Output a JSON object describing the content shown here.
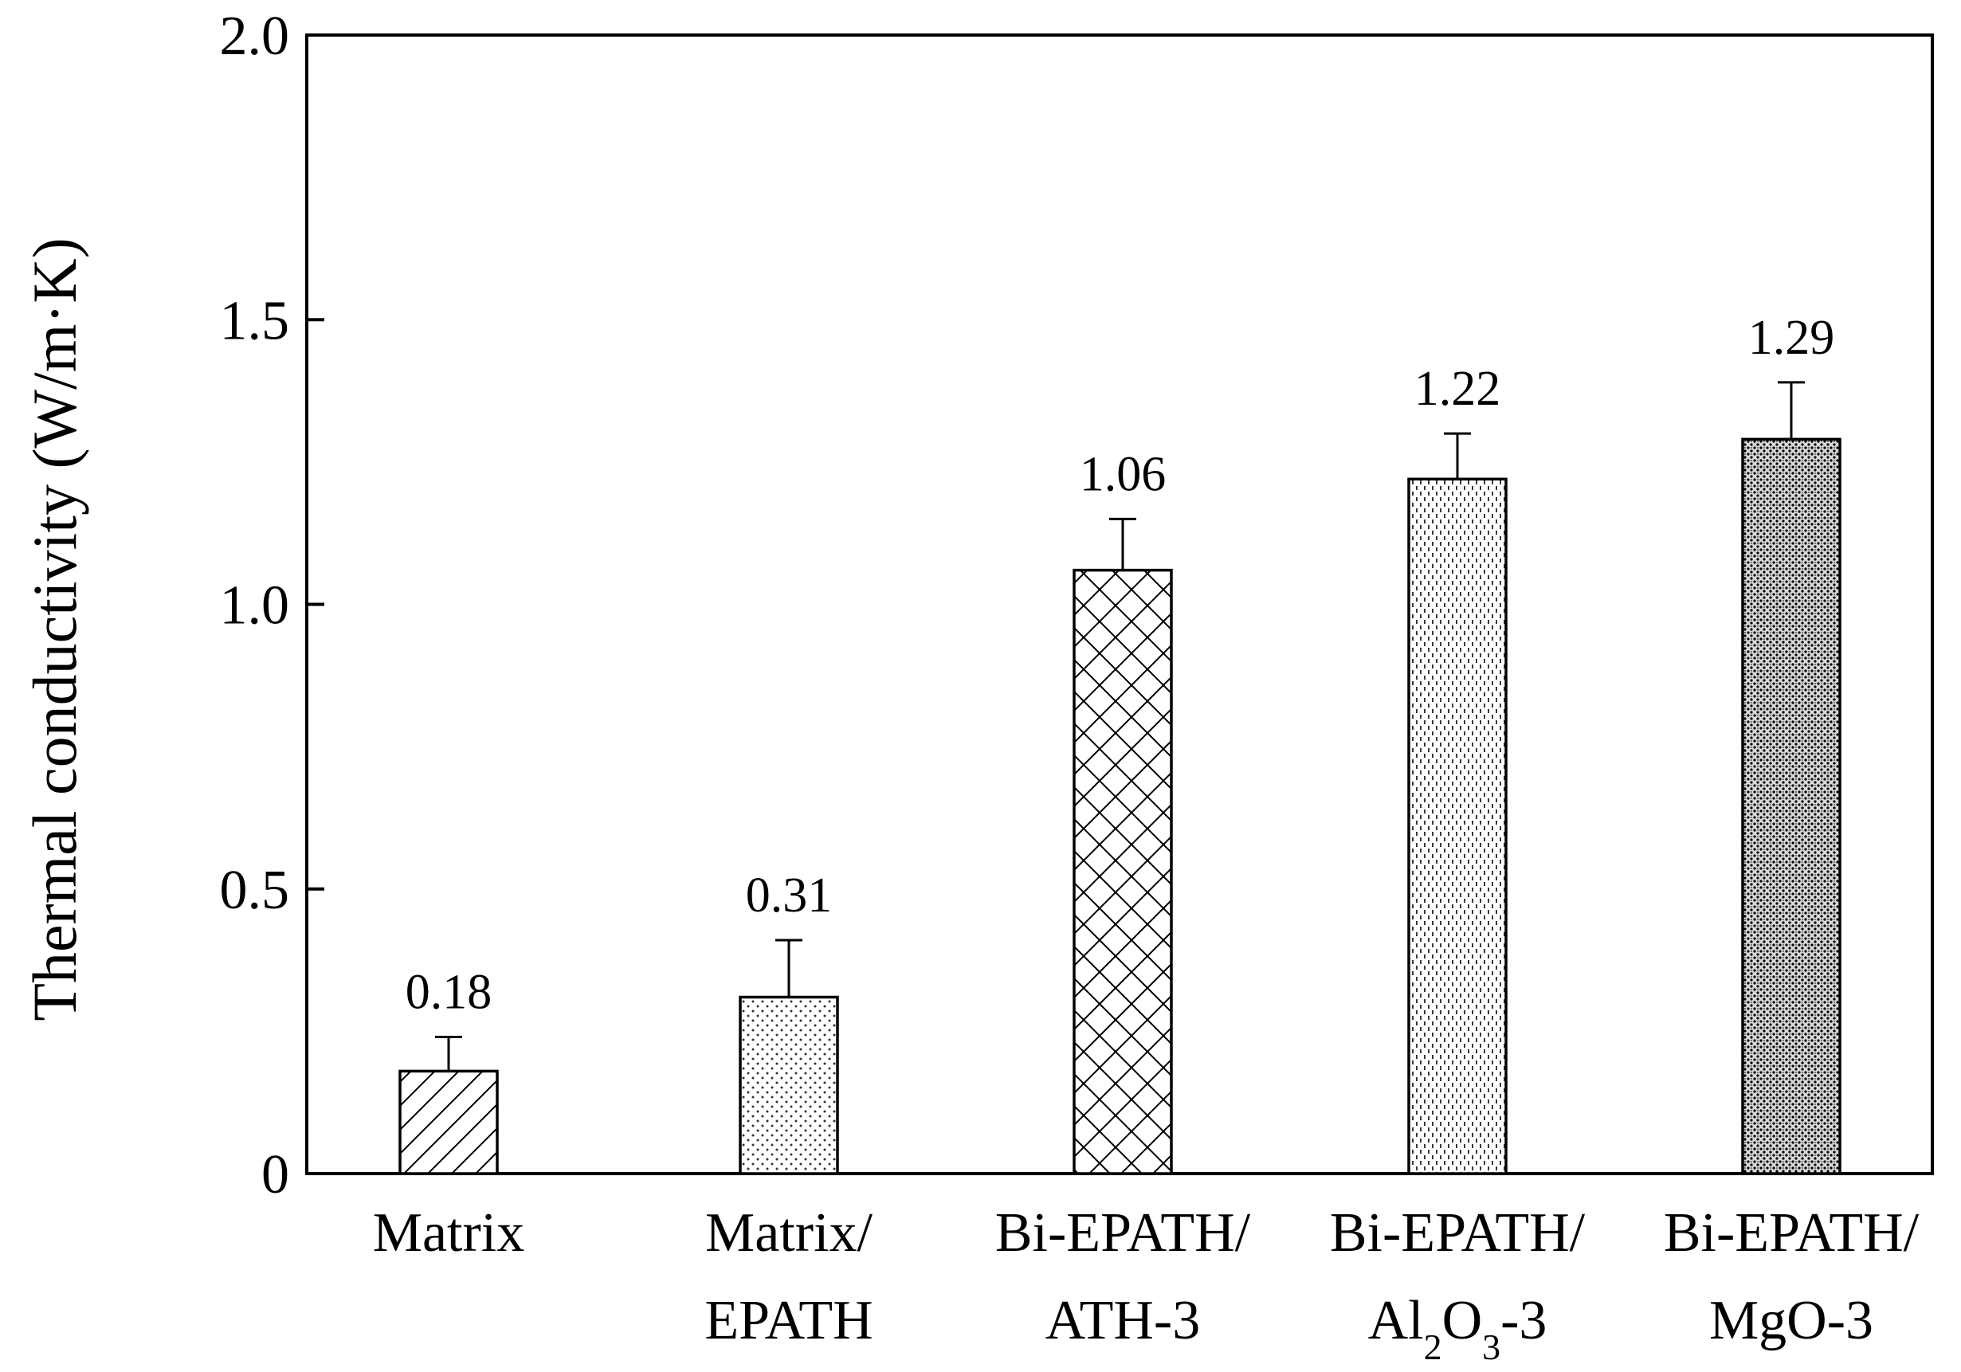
{
  "chart_data": {
    "type": "bar",
    "categories": [
      [
        "Matrix"
      ],
      [
        "Matrix/",
        "EPATH"
      ],
      [
        "Bi-EPATH/",
        "ATH-3"
      ],
      [
        "Bi-EPATH/",
        "Al2O3-3"
      ],
      [
        "Bi-EPATH/",
        "MgO-3"
      ]
    ],
    "values": [
      0.18,
      0.31,
      1.06,
      1.22,
      1.29
    ],
    "value_labels": [
      "0.18",
      "0.31",
      "1.06",
      "1.22",
      "1.29"
    ],
    "error_bars": [
      0.06,
      0.1,
      0.09,
      0.08,
      0.1
    ],
    "patterns": [
      "diagonal-hatch",
      "sparse-dots",
      "cross-hatch",
      "dashes",
      "dense-dots"
    ],
    "title": "",
    "xlabel": "",
    "ylabel": "Thermal conductivity (W/m·K)",
    "ylim": [
      0,
      2.0
    ],
    "yticks": [
      {
        "value": 0,
        "label": "0"
      },
      {
        "value": 0.5,
        "label": "0.5"
      },
      {
        "value": 1.0,
        "label": "1.0"
      },
      {
        "value": 1.5,
        "label": "1.5"
      },
      {
        "value": 2.0,
        "label": "2.0"
      }
    ],
    "grid": false,
    "legend": "none"
  }
}
